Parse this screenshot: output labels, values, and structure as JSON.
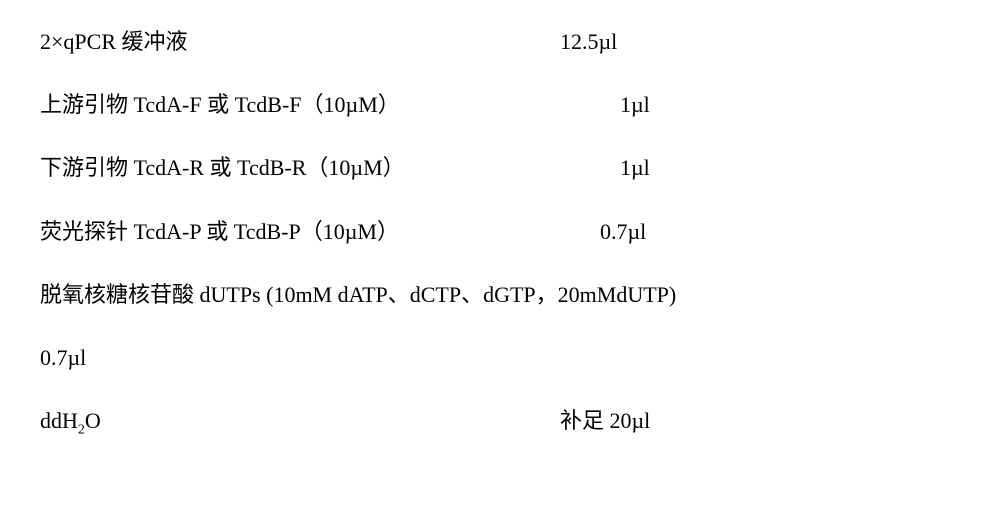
{
  "rows": {
    "r1": {
      "label": "2×qPCR 缓冲液",
      "value": "12.5µl"
    },
    "r2": {
      "label": "上游引物 TcdA-F 或 TcdB-F（10µM）",
      "value": "1µl"
    },
    "r3": {
      "label": "下游引物 TcdA-R 或 TcdB-R（10µM）",
      "value": "1µl"
    },
    "r4": {
      "label": "荧光探针 TcdA-P 或 TcdB-P（10µM）",
      "value": "0.7µl"
    },
    "r5": {
      "label": "脱氧核糖核苷酸 dUTPs (10mM dATP、dCTP、dGTP，20mMdUTP)"
    },
    "r6": {
      "label": "0.7µl"
    },
    "r7": {
      "label_prefix": "ddH",
      "label_sub": "2",
      "label_suffix": "O",
      "value": "补足 20µl"
    }
  },
  "colors": {
    "text": "#000000",
    "background": "#ffffff"
  },
  "typography": {
    "font_family": "SimSun",
    "font_size_pt": 16
  }
}
